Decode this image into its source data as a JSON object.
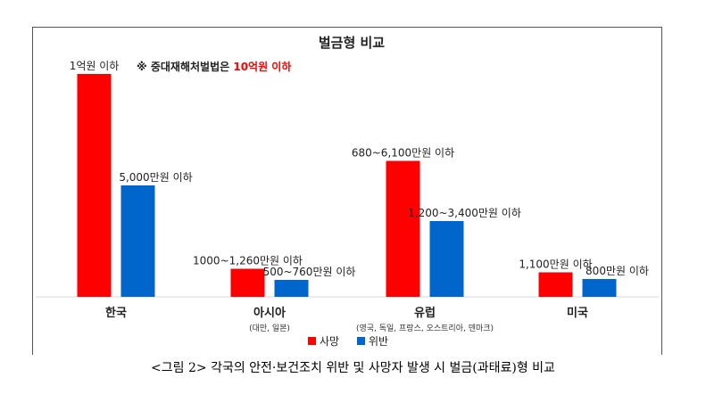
{
  "chart_data": {
    "type": "bar",
    "title": "벌금형 비교",
    "annotation": {
      "prefix": "※ 중대재해처벌법은 ",
      "highlight": "10억원 이하"
    },
    "categories": [
      {
        "name": "한국",
        "sub": ""
      },
      {
        "name": "아시아",
        "sub": "(대만, 일본)"
      },
      {
        "name": "유럽",
        "sub": "(영국, 독일, 프랑스, 오스트리아, 덴마크)"
      },
      {
        "name": "미국",
        "sub": ""
      }
    ],
    "unit": "만원",
    "ylim": [
      0,
      10000
    ],
    "series": [
      {
        "name": "사망",
        "color": "#ff0000",
        "values": [
          10000,
          1260,
          6100,
          1100
        ],
        "labels": [
          "1억원 이하",
          "1000~1,260만원 이하",
          "680~6,100만원 이하",
          "1,100만원 이하"
        ]
      },
      {
        "name": "위반",
        "color": "#0066cc",
        "values": [
          5000,
          760,
          3400,
          800
        ],
        "labels": [
          "5,000만원 이하",
          "500~760만원 이하",
          "1,200~3,400만원 이하",
          "800만원 이하"
        ]
      }
    ],
    "legend_position": "bottom-left",
    "grid": false
  },
  "caption": "<그림 2> 각국의 안전·보건조치 위반 및 사망자 발생 시 벌금(과태료)형 비교",
  "colors": {
    "highlight": "#ff0000",
    "text": "#222222",
    "baseline": "#d9d9d9"
  }
}
